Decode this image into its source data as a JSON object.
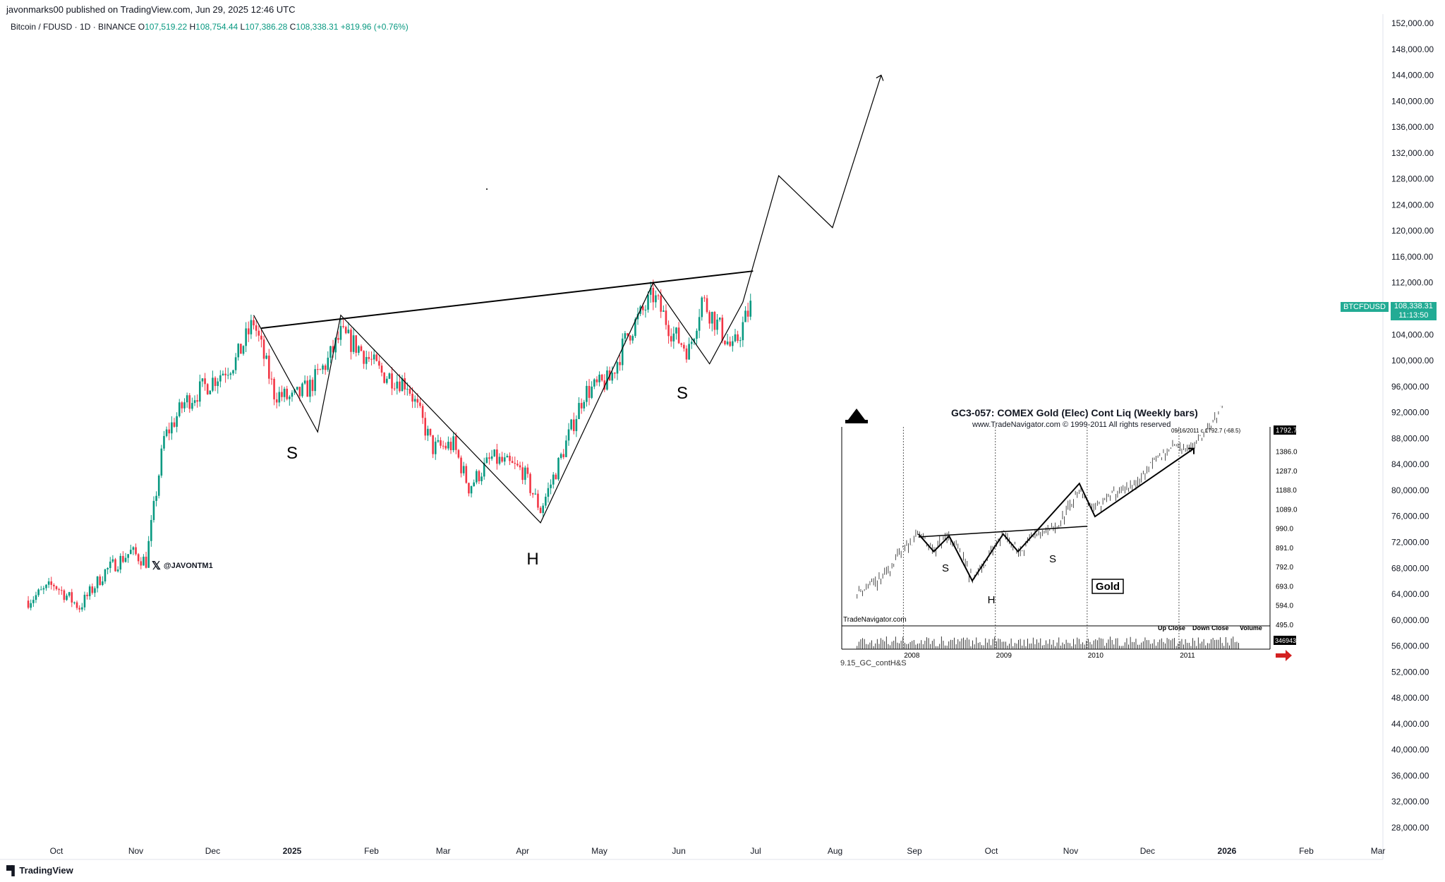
{
  "header": {
    "published": "javonmarks00 published on TradingView.com, Jun 29, 2025 12:46 UTC",
    "symbol": "Bitcoin / FDUSD · 1D · BINANCE",
    "o_label": "O",
    "o_value": "107,519.22",
    "h_label": "H",
    "h_value": "108,754.44",
    "l_label": "L",
    "l_value": "107,386.28",
    "c_label": "C",
    "c_value": "108,338.31",
    "change": "+819.96 (+0.76%)"
  },
  "price_tag": {
    "symbol": "BTCFDUSD",
    "price": "108,338.31",
    "countdown": "11:13:50"
  },
  "handle": "@JAVONTM1",
  "footer": {
    "brand": "TradingView"
  },
  "colors": {
    "up": "#089981",
    "down": "#f23645",
    "tag": "#22ab94",
    "arrow": "#d32020"
  },
  "chart_data": [
    {
      "type": "line",
      "title": "Bitcoin / FDUSD · 1D · BINANCE",
      "xlabel": "",
      "ylabel": "",
      "y_axis_position": "right",
      "ylim": [
        28000,
        152000
      ],
      "y_ticks": [
        "152,000.00",
        "148,000.00",
        "144,000.00",
        "140,000.00",
        "136,000.00",
        "132,000.00",
        "128,000.00",
        "124,000.00",
        "120,000.00",
        "116,000.00",
        "112,000.00",
        "108,000.00",
        "104,000.00",
        "100,000.00",
        "96,000.00",
        "92,000.00",
        "88,000.00",
        "84,000.00",
        "80,000.00",
        "76,000.00",
        "72,000.00",
        "68,000.00",
        "64,000.00",
        "60,000.00",
        "56,000.00",
        "52,000.00",
        "48,000.00",
        "44,000.00",
        "40,000.00",
        "36,000.00",
        "32,000.00",
        "28,000.00"
      ],
      "x_ticks": [
        "Oct",
        "Nov",
        "Dec",
        "2025",
        "Feb",
        "Mar",
        "Apr",
        "May",
        "Jun",
        "Jul",
        "Aug",
        "Sep",
        "Oct",
        "Nov",
        "Dec",
        "2026",
        "Feb",
        "Mar"
      ],
      "x_ticks_bold": [
        "2025",
        "2026"
      ],
      "pattern_labels": [
        "S",
        "S",
        "H"
      ],
      "price_series": {
        "name": "BTCFDUSD",
        "x": [
          "2024-09-20",
          "2024-09-30",
          "2024-10-10",
          "2024-10-20",
          "2024-10-30",
          "2024-11-05",
          "2024-11-12",
          "2024-11-20",
          "2024-12-01",
          "2024-12-10",
          "2024-12-17",
          "2024-12-25",
          "2025-01-01",
          "2025-01-08",
          "2025-01-15",
          "2025-01-20",
          "2025-01-27",
          "2025-02-05",
          "2025-02-15",
          "2025-02-25",
          "2025-03-05",
          "2025-03-11",
          "2025-03-20",
          "2025-04-01",
          "2025-04-08",
          "2025-04-15",
          "2025-04-25",
          "2025-05-05",
          "2025-05-12",
          "2025-05-22",
          "2025-05-30",
          "2025-06-05",
          "2025-06-10",
          "2025-06-17",
          "2025-06-22",
          "2025-06-29"
        ],
        "close": [
          63000,
          65500,
          62000,
          67500,
          70500,
          69000,
          88000,
          93500,
          97000,
          100000,
          106000,
          95000,
          94000,
          96000,
          100000,
          104000,
          102000,
          98000,
          96500,
          86500,
          87000,
          80500,
          85000,
          83000,
          77000,
          84000,
          95000,
          97000,
          104000,
          110000,
          104000,
          101500,
          109500,
          105000,
          101500,
          108338
        ]
      },
      "zigzag": {
        "x": [
          "2024-12-17",
          "2025-01-11",
          "2025-01-20",
          "2025-04-08",
          "2025-05-22",
          "2025-06-13",
          "2025-06-26",
          "2025-07-10",
          "2025-07-31",
          "2025-08-19"
        ],
        "y": [
          107000,
          89000,
          107000,
          75000,
          112000,
          99500,
          109000,
          128500,
          120500,
          144000
        ]
      },
      "neckline": {
        "x": [
          "2024-12-20",
          "2025-06-30"
        ],
        "y": [
          105000,
          113800
        ]
      }
    },
    {
      "type": "line",
      "title": "GC3-057:  COMEX Gold (Elec) Cont Liq  (Weekly bars)",
      "subtitle": "www.TradeNavigator.com © 1999-2011 All rights reserved",
      "source": "TradeNavigator.com",
      "caption": "9.15_GC_contH&S",
      "badge": "Gold",
      "ylim": [
        495.0,
        1493.0
      ],
      "y_ticks": [
        "1386.0",
        "1287.0",
        "1188.0",
        "1089.0",
        "990.0",
        "891.0",
        "792.0",
        "693.0",
        "594.0",
        "495.0"
      ],
      "x_ticks": [
        "2008",
        "2009",
        "2010",
        "2011"
      ],
      "last_price": "1792.7",
      "last_note": "09/16/2011 c 1792.7 (-68.5)",
      "legend": [
        "Up Close",
        "Down Close",
        "Volume"
      ],
      "volume_last": "346943",
      "pattern_labels": [
        "S",
        "H",
        "S"
      ],
      "series": {
        "x": [
          "2007-07",
          "2007-10",
          "2008-01",
          "2008-03",
          "2008-05",
          "2008-07",
          "2008-09",
          "2008-10",
          "2008-12",
          "2009-02",
          "2009-04",
          "2009-06",
          "2009-09",
          "2009-12",
          "2010-02",
          "2010-04",
          "2010-07",
          "2010-10",
          "2010-12",
          "2011-03",
          "2011-05",
          "2011-07",
          "2011-09"
        ],
        "close": [
          660,
          720,
          880,
          960,
          880,
          950,
          820,
          720,
          830,
          960,
          870,
          940,
          990,
          1180,
          1080,
          1160,
          1200,
          1340,
          1400,
          1420,
          1500,
          1640,
          1790
        ]
      },
      "zigzag": {
        "x": [
          "2008-03",
          "2008-05",
          "2008-07",
          "2008-10",
          "2009-02",
          "2009-04",
          "2009-12",
          "2010-02",
          "2011-03"
        ],
        "y": [
          960,
          870,
          950,
          720,
          960,
          870,
          1220,
          1050,
          1400
        ]
      },
      "neckline": {
        "x": [
          "2008-03",
          "2010-01"
        ],
        "y": [
          945,
          1000
        ]
      }
    }
  ]
}
